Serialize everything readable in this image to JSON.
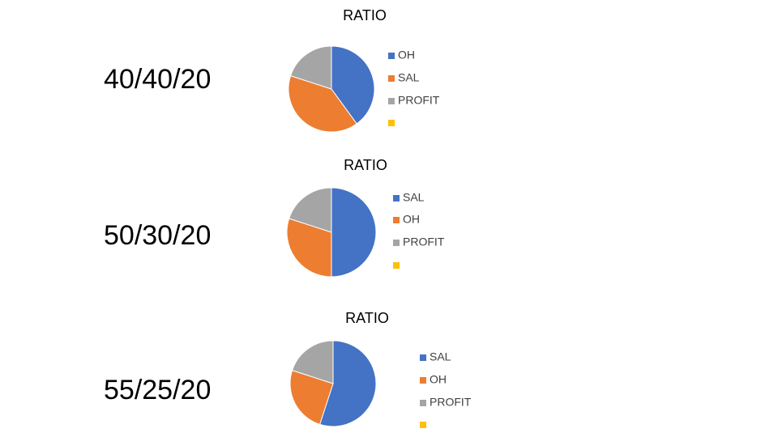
{
  "slide_labels": [
    "40/40/20",
    "50/30/20",
    "55/25/20"
  ],
  "chart_data": [
    {
      "type": "pie",
      "title": "RATIO",
      "categories": [
        "OH",
        "SAL",
        "PROFIT",
        null
      ],
      "values": [
        40,
        40,
        20,
        0
      ],
      "colors": [
        "#4472c4",
        "#ed7d31",
        "#a5a5a5",
        "#ffc000"
      ]
    },
    {
      "type": "pie",
      "title": "RATIO",
      "categories": [
        "SAL",
        "OH",
        "PROFIT",
        null
      ],
      "values": [
        50,
        30,
        20,
        0
      ],
      "colors": [
        "#4472c4",
        "#ed7d31",
        "#a5a5a5",
        "#ffc000"
      ]
    },
    {
      "type": "pie",
      "title": "RATIO",
      "categories": [
        "SAL",
        "OH",
        "PROFIT",
        null
      ],
      "values": [
        55,
        25,
        20,
        0
      ],
      "colors": [
        "#4472c4",
        "#ed7d31",
        "#a5a5a5",
        "#ffc000"
      ]
    }
  ]
}
